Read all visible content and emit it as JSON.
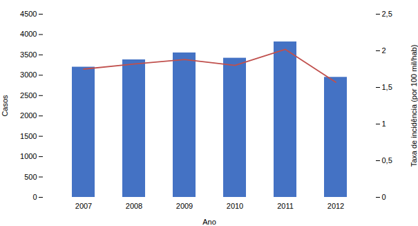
{
  "chart_data": {
    "type": "bar",
    "xlabel": "Ano",
    "ylabel": "Casos",
    "y2label": "Taxa de incidência (por 100 mil/hab)",
    "categories": [
      "2007",
      "2008",
      "2009",
      "2010",
      "2011",
      "2012"
    ],
    "series": [
      {
        "type": "bar",
        "color": "#4472c4",
        "values": [
          3200,
          3380,
          3550,
          3420,
          3820,
          2950
        ]
      },
      {
        "type": "line",
        "axis": "y2",
        "color": "#c0504d",
        "values": [
          1.75,
          1.82,
          1.88,
          1.8,
          2.02,
          1.57
        ]
      }
    ],
    "ylim": [
      0,
      4500
    ],
    "yticks": [
      0,
      500,
      1000,
      1500,
      2000,
      2500,
      3000,
      3500,
      4000,
      4500
    ],
    "y2lim": [
      0,
      2.5
    ],
    "y2ticks": [
      0,
      {
        "value": 0.5,
        "label": "0,5"
      },
      1,
      {
        "value": 1.5,
        "label": "1,5"
      },
      2,
      {
        "value": 2.5,
        "label": "2,5"
      }
    ]
  }
}
